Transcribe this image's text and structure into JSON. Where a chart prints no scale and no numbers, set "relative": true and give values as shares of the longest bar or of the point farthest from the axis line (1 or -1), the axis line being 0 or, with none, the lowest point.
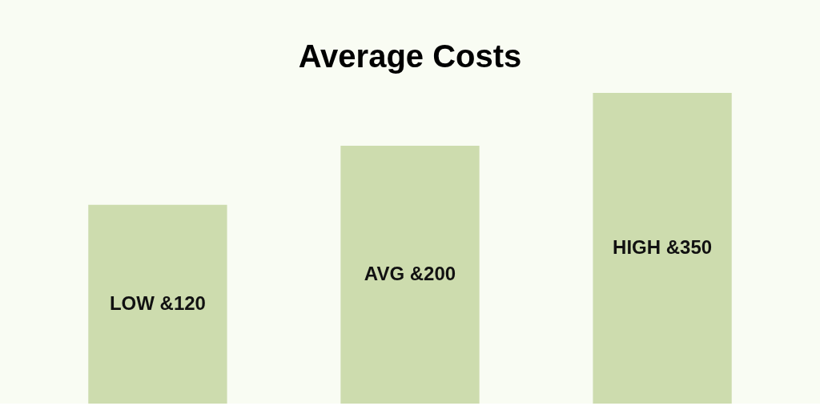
{
  "chart_data": {
    "type": "bar",
    "title": "Average Costs",
    "relative": true,
    "categories": [
      "LOW &120",
      "AVG &200",
      "HIGH &350"
    ],
    "values": [
      0.64,
      0.83,
      1
    ],
    "color": "#cddcae"
  }
}
